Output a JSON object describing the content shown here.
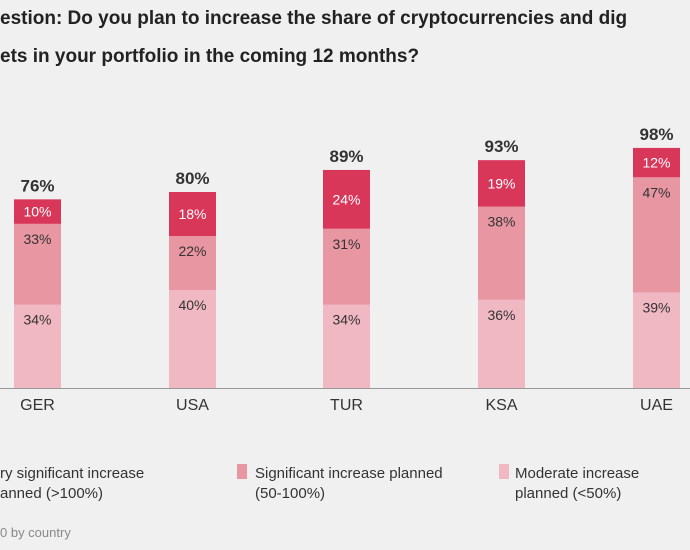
{
  "title_line1": "estion: Do you plan to increase the share of cryptocurrencies and dig",
  "title_line2": "ets in your portfolio in the coming 12 months?",
  "colors": {
    "very_significant": "#d9375a",
    "significant": "#e896a2",
    "moderate": "#f0b8c2",
    "background": "#f0f0f0"
  },
  "chart_data": {
    "type": "bar",
    "stacked": true,
    "categories": [
      "GER",
      "USA",
      "TUR",
      "KSA",
      "UAE"
    ],
    "totals": [
      "76%",
      "80%",
      "89%",
      "93%",
      "98%"
    ],
    "series": [
      {
        "name": "Moderate increase planned (<50%)",
        "values": [
          34,
          40,
          34,
          36,
          39
        ]
      },
      {
        "name": "Significant increase planned (50-100%)",
        "values": [
          33,
          22,
          31,
          38,
          47
        ]
      },
      {
        "name": "ry significant increase anned (>100%)",
        "values": [
          10,
          18,
          24,
          19,
          12
        ]
      }
    ],
    "grid": false,
    "legend_position": "bottom"
  },
  "legend": [
    {
      "line1": "ry significant increase",
      "line2": "anned (>100%)"
    },
    {
      "line1": "Significant increase planned",
      "line2": "(50-100%)"
    },
    {
      "line1": "Moderate increase",
      "line2": "planned (<50%)"
    }
  ],
  "footnote": "0 by country"
}
